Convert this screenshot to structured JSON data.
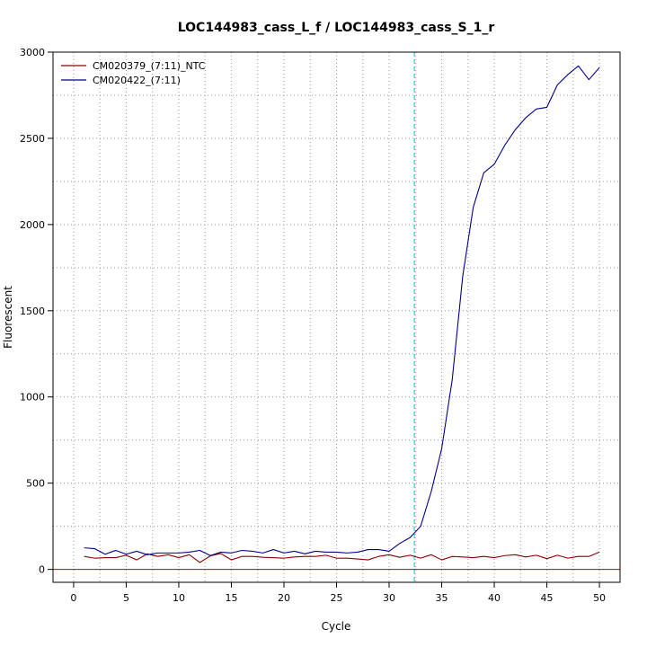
{
  "chart_data": {
    "type": "line",
    "title": "LOC144983_cass_L_f / LOC144983_cass_S_1_r",
    "xlabel": "Cycle",
    "ylabel": "Fluorescent",
    "xlim": [
      -1.96,
      51.96
    ],
    "ylim": [
      -75,
      3000
    ],
    "x_ticks": [
      0,
      5,
      10,
      15,
      20,
      25,
      30,
      35,
      40,
      45,
      50
    ],
    "y_ticks": [
      0,
      500,
      1000,
      1500,
      2000,
      2500,
      3000
    ],
    "x_ticks_labels": [
      "0",
      "5",
      "10",
      "15",
      "20",
      "25",
      "30",
      "35",
      "40",
      "45",
      "50"
    ],
    "y_ticks_labels": [
      "0",
      "500",
      "1000",
      "1500",
      "2000",
      "2500",
      "3000"
    ],
    "x_grid": [
      2.5,
      7.5,
      12.5,
      17.5,
      22.5,
      27.5,
      32.5,
      37.5,
      42.5,
      47.5
    ],
    "y_grid": [
      0,
      250,
      500,
      750,
      1000,
      1250,
      1500,
      1750,
      2000,
      2250,
      2500,
      2750,
      3000
    ],
    "grid": true,
    "legend_position": "top-left",
    "threshold_cycle": 32.4,
    "threshold_color": "#00cccc",
    "baseline": 0,
    "baseline_color": "#cc0000",
    "x": [
      1,
      2,
      3,
      4,
      5,
      6,
      7,
      8,
      9,
      10,
      11,
      12,
      13,
      14,
      15,
      16,
      17,
      18,
      19,
      20,
      21,
      22,
      23,
      24,
      25,
      26,
      27,
      28,
      29,
      30,
      31,
      32,
      33,
      34,
      35,
      36,
      37,
      38,
      39,
      40,
      41,
      42,
      43,
      44,
      45,
      46,
      47,
      48,
      49,
      50
    ],
    "series": [
      {
        "name": "CM020379_(7:11)_NTC",
        "color": "#8b0000",
        "values": [
          75,
          65,
          68,
          68,
          82,
          55,
          90,
          75,
          85,
          68,
          85,
          40,
          78,
          92,
          55,
          75,
          75,
          70,
          68,
          65,
          72,
          75,
          75,
          82,
          65,
          65,
          60,
          55,
          75,
          85,
          70,
          82,
          65,
          85,
          55,
          75,
          72,
          68,
          75,
          68,
          80,
          85,
          72,
          82,
          62,
          82,
          65,
          75,
          75,
          100
        ]
      },
      {
        "name": "CM020422_(7:11)",
        "color": "#00008b",
        "values": [
          125,
          120,
          88,
          110,
          88,
          105,
          85,
          95,
          95,
          95,
          100,
          110,
          80,
          100,
          95,
          110,
          105,
          95,
          115,
          95,
          105,
          90,
          105,
          100,
          100,
          95,
          100,
          115,
          115,
          105,
          150,
          185,
          250,
          450,
          700,
          1100,
          1700,
          2100,
          2300,
          2350,
          2460,
          2550,
          2620,
          2670,
          2680,
          2810,
          2870,
          2920,
          2840,
          2910
        ]
      }
    ]
  }
}
